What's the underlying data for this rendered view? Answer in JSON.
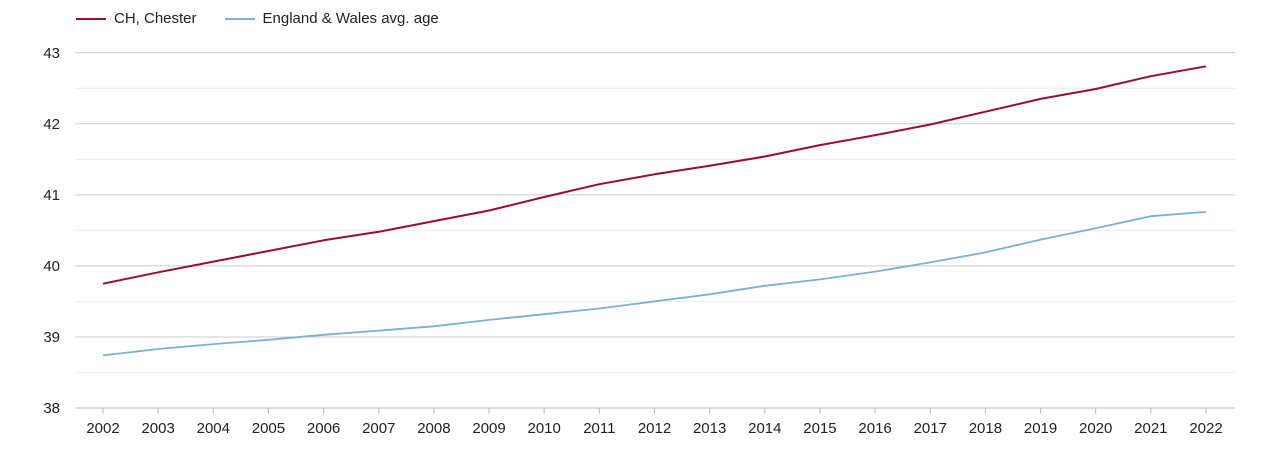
{
  "chart_data": {
    "type": "line",
    "x": [
      "2002",
      "2003",
      "2004",
      "2005",
      "2006",
      "2007",
      "2008",
      "2009",
      "2010",
      "2011",
      "2012",
      "2013",
      "2014",
      "2015",
      "2016",
      "2017",
      "2018",
      "2019",
      "2020",
      "2021",
      "2022"
    ],
    "series": [
      {
        "name": "CH, Chester",
        "color": "#9b0c2f",
        "values": [
          39.75,
          39.91,
          40.06,
          40.21,
          40.36,
          40.48,
          40.63,
          40.78,
          40.97,
          41.15,
          41.29,
          41.41,
          41.54,
          41.7,
          41.84,
          41.99,
          42.17,
          42.35,
          42.49,
          42.67,
          42.81
        ]
      },
      {
        "name": "England & Wales avg. age",
        "color": "#7bb0d3",
        "values": [
          38.74,
          38.83,
          38.9,
          38.96,
          39.03,
          39.09,
          39.15,
          39.24,
          39.32,
          39.4,
          39.5,
          39.6,
          39.72,
          39.81,
          39.92,
          40.05,
          40.19,
          40.37,
          40.53,
          40.7,
          40.76
        ]
      }
    ],
    "yticks": [
      38,
      39,
      40,
      41,
      42,
      43
    ],
    "ylim": [
      38,
      43.25
    ],
    "grid": true,
    "legend_position": "top-left"
  }
}
